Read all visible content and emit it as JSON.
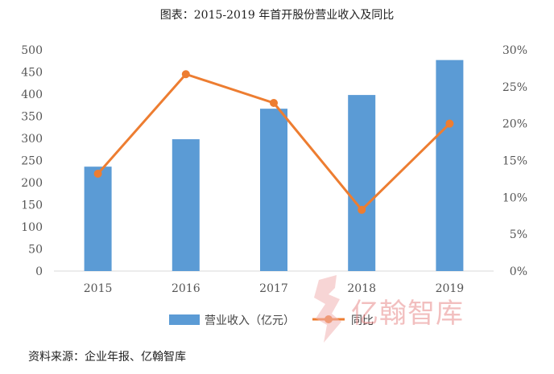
{
  "title": "图表：2015-2019 年首开股份营业收入及同比",
  "source": "资料来源：企业年报、亿翰智库",
  "watermark": {
    "text": "亿翰智库",
    "color": "#e98b8b"
  },
  "colors": {
    "bar": "#5b9bd5",
    "line": "#ed7d31",
    "axis_text": "#555555",
    "axis_line": "#d9d9d9"
  },
  "chart_data": {
    "type": "bar",
    "categories": [
      "2015",
      "2016",
      "2017",
      "2018",
      "2019"
    ],
    "series": [
      {
        "name": "营业收入（亿元）",
        "type": "bar",
        "axis": "left",
        "values": [
          236,
          298,
          367,
          398,
          477
        ]
      },
      {
        "name": "同比",
        "type": "line",
        "axis": "right",
        "values": [
          13.2,
          26.7,
          22.8,
          8.3,
          20.0
        ]
      }
    ],
    "y_left": {
      "min": 0,
      "max": 500,
      "step": 50,
      "ticks": [
        "0",
        "50",
        "100",
        "150",
        "200",
        "250",
        "300",
        "350",
        "400",
        "450",
        "500"
      ]
    },
    "y_right": {
      "min": 0,
      "max": 30,
      "step": 5,
      "ticks": [
        "0%",
        "5%",
        "10%",
        "15%",
        "20%",
        "25%",
        "30%"
      ]
    },
    "legend": {
      "position": "bottom",
      "items": [
        "营业收入（亿元）",
        "同比"
      ]
    },
    "grid": false
  }
}
